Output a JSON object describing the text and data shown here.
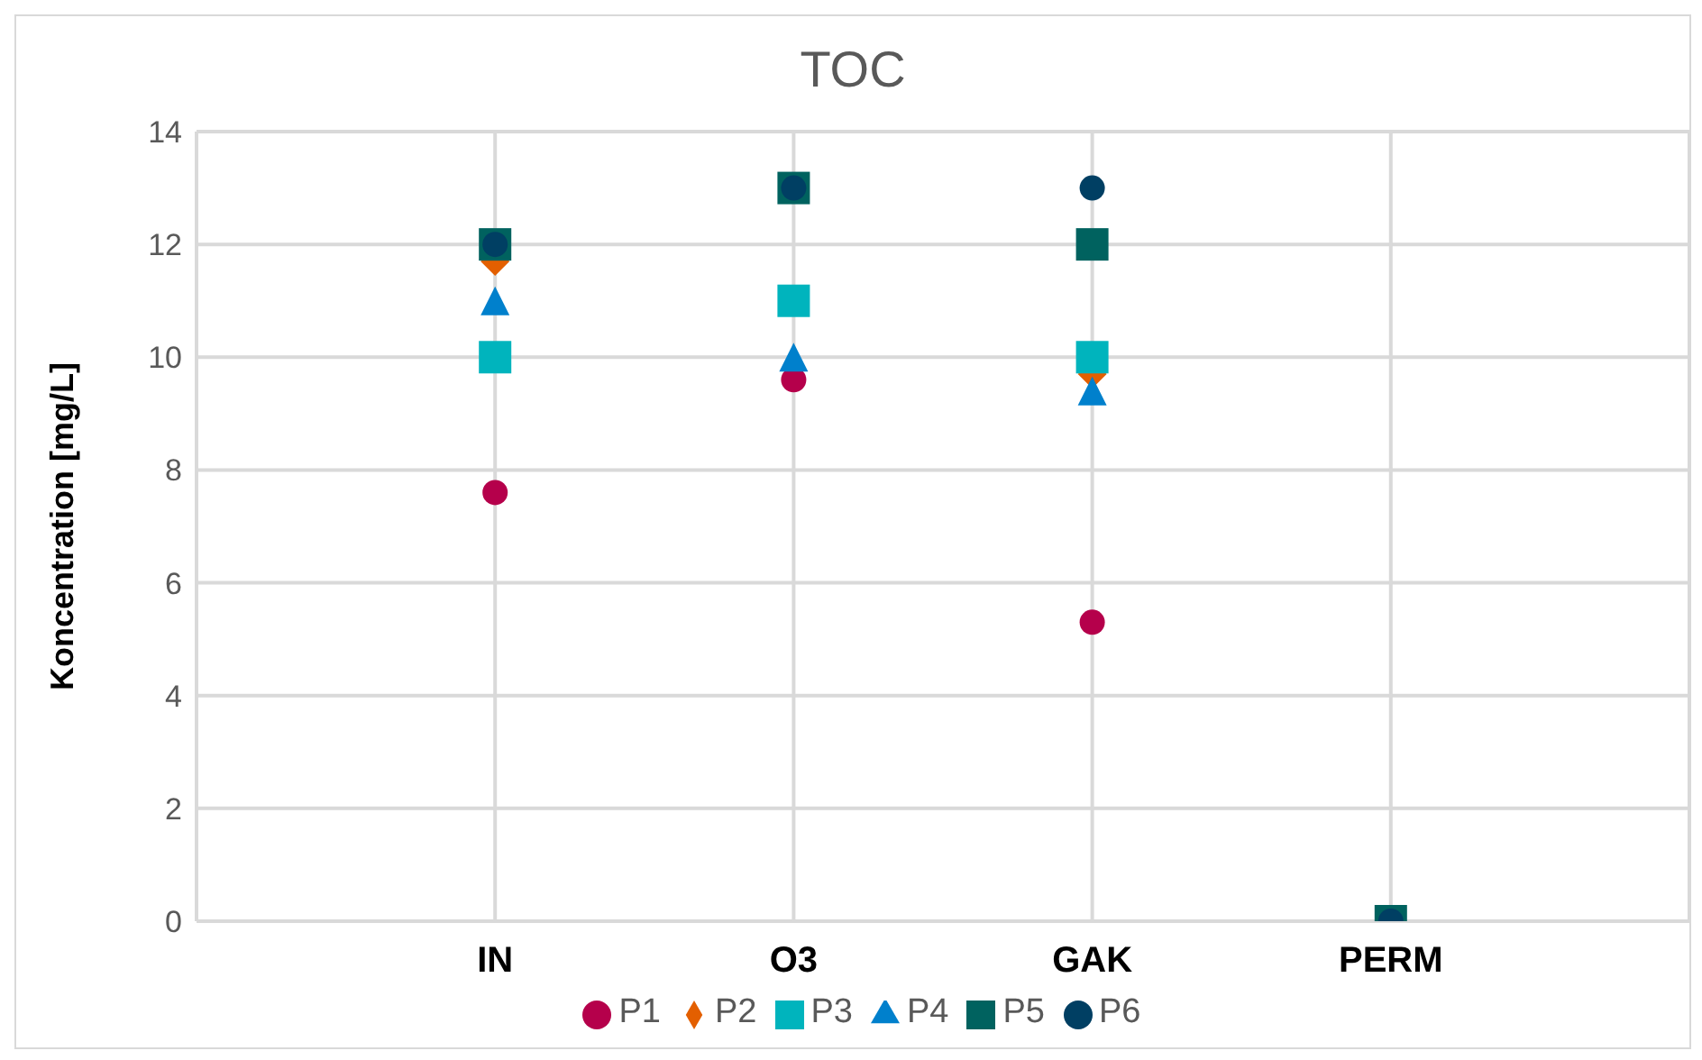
{
  "chart_data": {
    "type": "scatter",
    "title": "TOC",
    "ylabel": "Koncentration [mg/L]",
    "categories": [
      "IN",
      "O3",
      "GAK",
      "PERM"
    ],
    "ylim": [
      0,
      14
    ],
    "yticks": [
      0,
      2,
      4,
      6,
      8,
      10,
      12,
      14
    ],
    "grid": true,
    "legend": "bottom",
    "series": [
      {
        "name": "P1",
        "color": "#b5004b",
        "marker": "circle",
        "values": [
          7.6,
          9.6,
          5.3,
          null
        ]
      },
      {
        "name": "P2",
        "color": "#e35f00",
        "marker": "diamond",
        "values": [
          11.7,
          null,
          9.7,
          null
        ]
      },
      {
        "name": "P3",
        "color": "#00b4bd",
        "marker": "square",
        "values": [
          10,
          11,
          10,
          null
        ]
      },
      {
        "name": "P4",
        "color": "#0080cc",
        "marker": "triangle",
        "values": [
          11,
          10,
          9.4,
          null
        ]
      },
      {
        "name": "P5",
        "color": "#00625f",
        "marker": "square",
        "values": [
          12,
          13,
          12,
          0
        ]
      },
      {
        "name": "P6",
        "color": "#003f63",
        "marker": "circle",
        "values": [
          12,
          13,
          13,
          0
        ]
      }
    ]
  }
}
